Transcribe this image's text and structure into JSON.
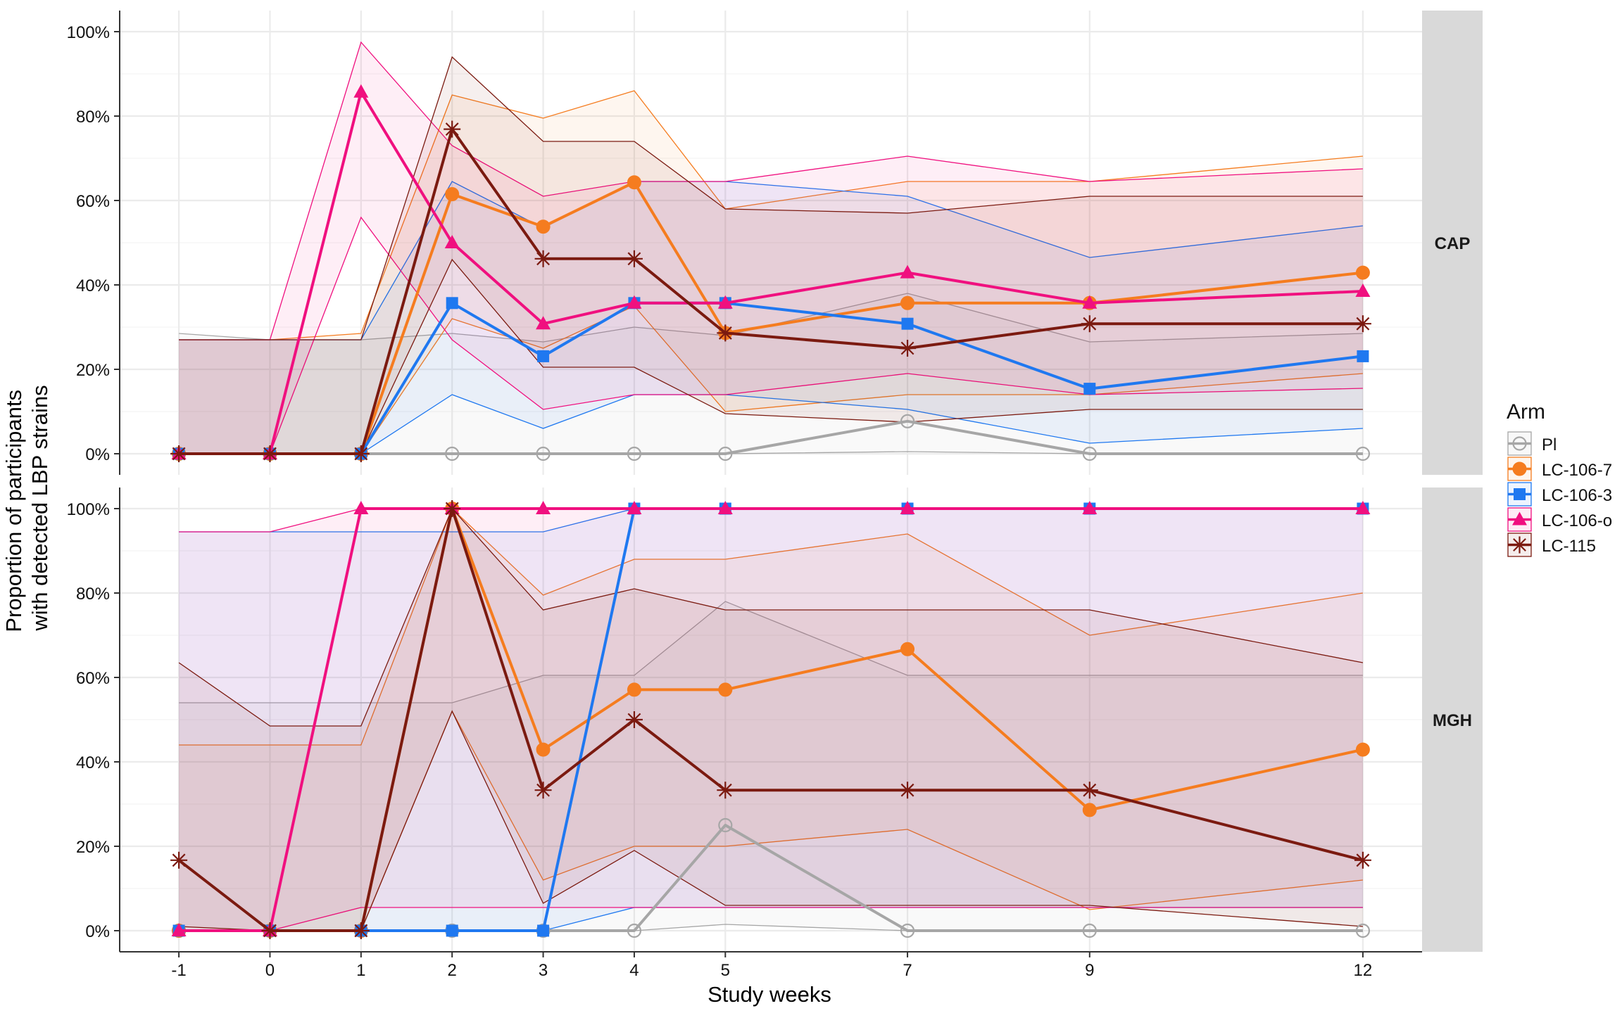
{
  "chart_data": {
    "type": "line",
    "xlabel": "Study weeks",
    "ylabel_lines": [
      "Proportion of participants",
      "with detected LBP strains"
    ],
    "x": [
      -1,
      0,
      1,
      2,
      3,
      4,
      5,
      7,
      9,
      12
    ],
    "x_tick_labels": [
      "-1",
      "0",
      "1",
      "2",
      "3",
      "4",
      "5",
      "7",
      "9",
      "12"
    ],
    "ylim": [
      0,
      1
    ],
    "y_ticks": [
      0,
      0.2,
      0.4,
      0.6,
      0.8,
      1.0
    ],
    "y_tick_labels": [
      "0%",
      "20%",
      "40%",
      "60%",
      "80%",
      "100%"
    ],
    "grid": true,
    "legend": {
      "title": "Arm",
      "placement": "right",
      "entries": [
        "Pl",
        "LC-106-7",
        "LC-106-3",
        "LC-106-o",
        "LC-115"
      ]
    },
    "series_styles": [
      {
        "name": "Pl",
        "color": "#a6a6a6",
        "marker": "open-circle"
      },
      {
        "name": "LC-106-7",
        "color": "#f57c1f",
        "marker": "circle"
      },
      {
        "name": "LC-106-3",
        "color": "#1f78f0",
        "marker": "square"
      },
      {
        "name": "LC-106-o",
        "color": "#f0107f",
        "marker": "triangle"
      },
      {
        "name": "LC-115",
        "color": "#7b1a10",
        "marker": "asterisk"
      }
    ],
    "panels": [
      {
        "strip": "CAP",
        "series": [
          {
            "name": "Pl",
            "x": [
              -1,
              0,
              1,
              2,
              3,
              4,
              5,
              7,
              9,
              12
            ],
            "values": [
              0,
              0,
              0,
              0,
              0,
              0,
              0,
              0.077,
              0,
              0
            ],
            "lower": [
              0,
              0,
              0,
              0,
              0,
              0,
              0,
              0.005,
              0,
              0
            ],
            "upper": [
              0.285,
              0.27,
              0.27,
              0.285,
              0.265,
              0.3,
              0.28,
              0.38,
              0.265,
              0.285
            ]
          },
          {
            "name": "LC-106-7",
            "x": [
              -1,
              0,
              1,
              2,
              3,
              4,
              5,
              7,
              9,
              12
            ],
            "values": [
              0,
              0,
              0,
              0.615,
              0.538,
              0.643,
              0.286,
              0.357,
              0.357,
              0.429
            ],
            "lower": [
              0,
              0,
              0,
              0.32,
              0.25,
              0.35,
              0.1,
              0.14,
              0.14,
              0.19
            ],
            "upper": [
              0.27,
              0.27,
              0.285,
              0.85,
              0.795,
              0.86,
              0.58,
              0.645,
              0.645,
              0.705
            ]
          },
          {
            "name": "LC-106-3",
            "x": [
              -1,
              0,
              1,
              2,
              3,
              4,
              5,
              7,
              9,
              12
            ],
            "values": [
              0,
              0,
              0,
              0.357,
              0.231,
              0.357,
              0.357,
              0.308,
              0.154,
              0.231
            ],
            "lower": [
              0,
              0,
              0,
              0.14,
              0.06,
              0.14,
              0.14,
              0.105,
              0.025,
              0.06
            ],
            "upper": [
              0.27,
              0.27,
              0.27,
              0.645,
              0.535,
              0.645,
              0.645,
              0.61,
              0.465,
              0.54
            ]
          },
          {
            "name": "LC-106-o",
            "x": [
              -1,
              0,
              1,
              2,
              3,
              4,
              5,
              7,
              9,
              12
            ],
            "values": [
              0,
              0,
              0.857,
              0.5,
              0.308,
              0.357,
              0.357,
              0.429,
              0.357,
              0.385
            ],
            "lower": [
              0,
              0,
              0.56,
              0.27,
              0.105,
              0.14,
              0.14,
              0.19,
              0.14,
              0.155
            ],
            "upper": [
              0.27,
              0.27,
              0.975,
              0.73,
              0.61,
              0.645,
              0.645,
              0.705,
              0.645,
              0.675
            ]
          },
          {
            "name": "LC-115",
            "x": [
              -1,
              0,
              1,
              2,
              3,
              4,
              5,
              7,
              9,
              12
            ],
            "values": [
              0,
              0,
              0,
              0.769,
              0.462,
              0.462,
              0.286,
              0.25,
              0.308,
              0.308
            ],
            "lower": [
              0,
              0,
              0,
              0.46,
              0.205,
              0.205,
              0.095,
              0.075,
              0.105,
              0.105
            ],
            "upper": [
              0.27,
              0.27,
              0.27,
              0.94,
              0.74,
              0.74,
              0.58,
              0.57,
              0.61,
              0.61
            ]
          }
        ]
      },
      {
        "strip": "MGH",
        "series": [
          {
            "name": "Pl",
            "x": [
              -1,
              0,
              1,
              2,
              3,
              4,
              5,
              7,
              9,
              12
            ],
            "values": [
              0,
              0,
              0,
              0,
              0,
              0,
              0.25,
              0,
              0,
              0
            ],
            "lower": [
              0,
              0,
              0,
              0,
              0,
              0,
              0.015,
              0,
              0,
              0
            ],
            "upper": [
              0.54,
              0.54,
              0.54,
              0.54,
              0.605,
              0.605,
              0.78,
              0.605,
              0.605,
              0.605
            ]
          },
          {
            "name": "LC-106-7",
            "x": [
              -1,
              0,
              1,
              2,
              3,
              4,
              5,
              7,
              9,
              12
            ],
            "values": [
              0,
              0,
              0,
              1,
              0.429,
              0.571,
              0.571,
              0.667,
              0.286,
              0.429
            ],
            "lower": [
              0,
              0,
              0,
              0.52,
              0.12,
              0.2,
              0.2,
              0.24,
              0.05,
              0.12
            ],
            "upper": [
              0.44,
              0.44,
              0.44,
              1,
              0.795,
              0.88,
              0.88,
              0.94,
              0.7,
              0.8
            ]
          },
          {
            "name": "LC-106-3",
            "x": [
              -1,
              0,
              1,
              2,
              3,
              4,
              5,
              7,
              9,
              12
            ],
            "values": [
              0,
              0,
              0,
              0,
              0,
              1,
              1,
              1,
              1,
              1
            ],
            "lower": [
              0,
              0,
              0,
              0,
              0,
              0.055,
              0.055,
              0.055,
              0.055,
              0.055
            ],
            "upper": [
              0.945,
              0.945,
              0.945,
              0.945,
              0.945,
              1,
              1,
              1,
              1,
              1
            ]
          },
          {
            "name": "LC-106-o",
            "x": [
              -1,
              0,
              1,
              2,
              3,
              4,
              5,
              7,
              9,
              12
            ],
            "values": [
              0,
              0,
              1,
              1,
              1,
              1,
              1,
              1,
              1,
              1
            ],
            "lower": [
              0,
              0,
              0.055,
              0.055,
              0.055,
              0.055,
              0.055,
              0.055,
              0.055,
              0.055
            ],
            "upper": [
              0.945,
              0.945,
              1,
              1,
              1,
              1,
              1,
              1,
              1,
              1
            ]
          },
          {
            "name": "LC-115",
            "x": [
              -1,
              0,
              1,
              2,
              3,
              4,
              5,
              7,
              9,
              12
            ],
            "values": [
              0.167,
              0,
              0,
              1,
              0.333,
              0.5,
              0.333,
              0.333,
              0.333,
              0.167
            ],
            "lower": [
              0.01,
              0,
              0,
              0.52,
              0.065,
              0.19,
              0.06,
              0.06,
              0.06,
              0.01
            ],
            "upper": [
              0.635,
              0.485,
              0.485,
              1,
              0.76,
              0.81,
              0.76,
              0.76,
              0.76,
              0.635
            ]
          }
        ]
      }
    ]
  }
}
